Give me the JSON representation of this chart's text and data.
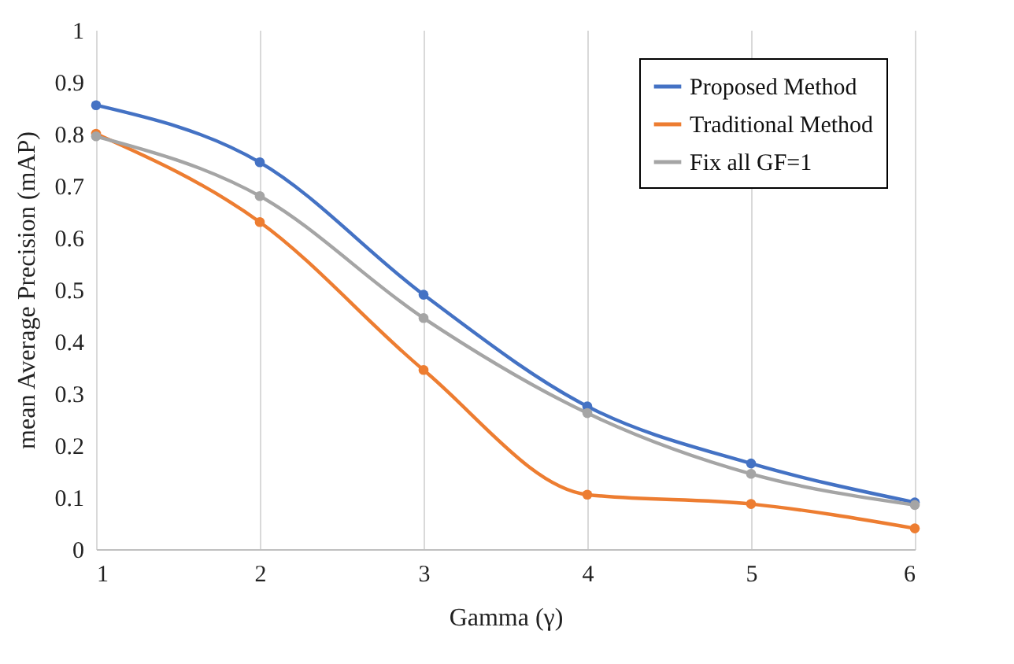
{
  "chart_data": {
    "type": "line",
    "xlabel": "Gamma (γ)",
    "ylabel": "mean Average Precision (mAP)",
    "x": [
      1,
      2,
      3,
      4,
      5,
      6
    ],
    "series": [
      {
        "name": "Proposed Method",
        "color": "#4472c4",
        "values": [
          0.855,
          0.745,
          0.49,
          0.275,
          0.165,
          0.09
        ]
      },
      {
        "name": "Traditional Method",
        "color": "#ed7d31",
        "values": [
          0.8,
          0.63,
          0.345,
          0.105,
          0.087,
          0.04
        ]
      },
      {
        "name": "Fix all GF=1",
        "color": "#a5a5a5",
        "values": [
          0.795,
          0.68,
          0.445,
          0.262,
          0.145,
          0.085
        ]
      }
    ],
    "xlim": [
      1,
      6
    ],
    "xticks": [
      1,
      2,
      3,
      4,
      5,
      6
    ],
    "ylim": [
      0,
      1
    ],
    "yticks": [
      0,
      0.1,
      0.2,
      0.3,
      0.4,
      0.5,
      0.6,
      0.7,
      0.8,
      0.9,
      1
    ],
    "grid": "x",
    "legend": "top right",
    "marker": "circle",
    "line_style": "solid"
  }
}
